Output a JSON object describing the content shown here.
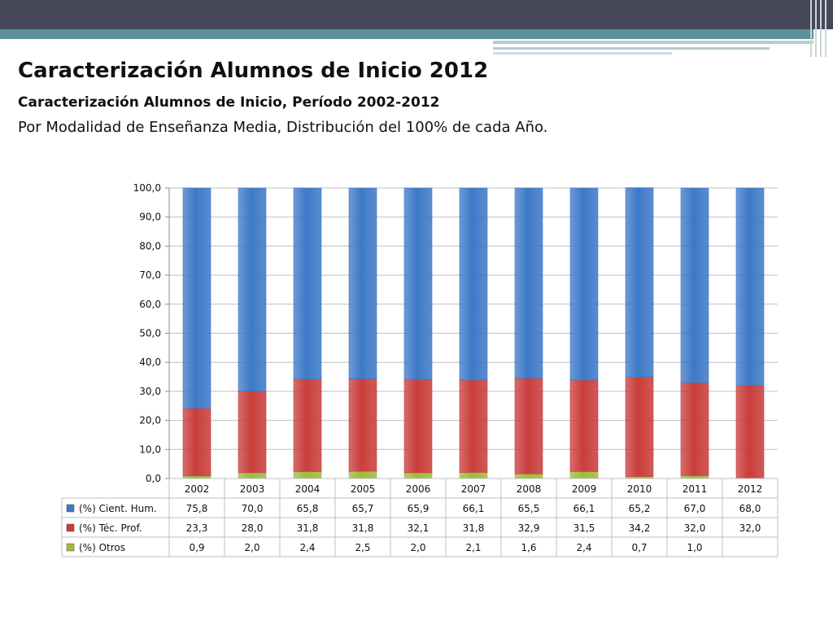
{
  "slide": {
    "title": "Caracterización Alumnos de Inicio 2012",
    "subtitle": "Caracterización Alumnos de Inicio, Período 2002-2012",
    "description": "Por Modalidad de Enseñanza Media, Distribución del 100% de cada Año."
  },
  "colors": {
    "header_bar": "#464759",
    "accent": "#5b8f99",
    "cient_hum": "#3d79c7",
    "tec_prof": "#c93d3b",
    "otros": "#9bbb3c",
    "grid": "#bfbfbf"
  },
  "chart_data": {
    "type": "bar",
    "stacked": true,
    "title": "",
    "xlabel": "",
    "ylabel": "",
    "ylim": [
      0,
      100
    ],
    "yticks": [
      "0,0",
      "10,0",
      "20,0",
      "30,0",
      "40,0",
      "50,0",
      "60,0",
      "70,0",
      "80,0",
      "90,0",
      "100,0"
    ],
    "grid": true,
    "legend": "data-table",
    "categories": [
      "2002",
      "2003",
      "2004",
      "2005",
      "2006",
      "2007",
      "2008",
      "2009",
      "2010",
      "2011",
      "2012"
    ],
    "series": [
      {
        "name": "(%) Cient. Hum.",
        "color": "#3d79c7",
        "values": [
          75.8,
          70.0,
          65.8,
          65.7,
          65.9,
          66.1,
          65.5,
          66.1,
          65.2,
          67.0,
          68.0
        ],
        "labels": [
          "75,8",
          "70,0",
          "65,8",
          "65,7",
          "65,9",
          "66,1",
          "65,5",
          "66,1",
          "65,2",
          "67,0",
          "68,0"
        ]
      },
      {
        "name": "(%) Téc. Prof.",
        "color": "#c93d3b",
        "values": [
          23.3,
          28.0,
          31.8,
          31.8,
          32.1,
          31.8,
          32.9,
          31.5,
          34.2,
          32.0,
          32.0
        ],
        "labels": [
          "23,3",
          "28,0",
          "31,8",
          "31,8",
          "32,1",
          "31,8",
          "32,9",
          "31,5",
          "34,2",
          "32,0",
          "32,0"
        ]
      },
      {
        "name": "(%) Otros",
        "color": "#9bbb3c",
        "values": [
          0.9,
          2.0,
          2.4,
          2.5,
          2.0,
          2.1,
          1.6,
          2.4,
          0.7,
          1.0,
          null
        ],
        "labels": [
          "0,9",
          "2,0",
          "2,4",
          "2,5",
          "2,0",
          "2,1",
          "1,6",
          "2,4",
          "0,7",
          "1,0",
          ""
        ]
      }
    ]
  }
}
